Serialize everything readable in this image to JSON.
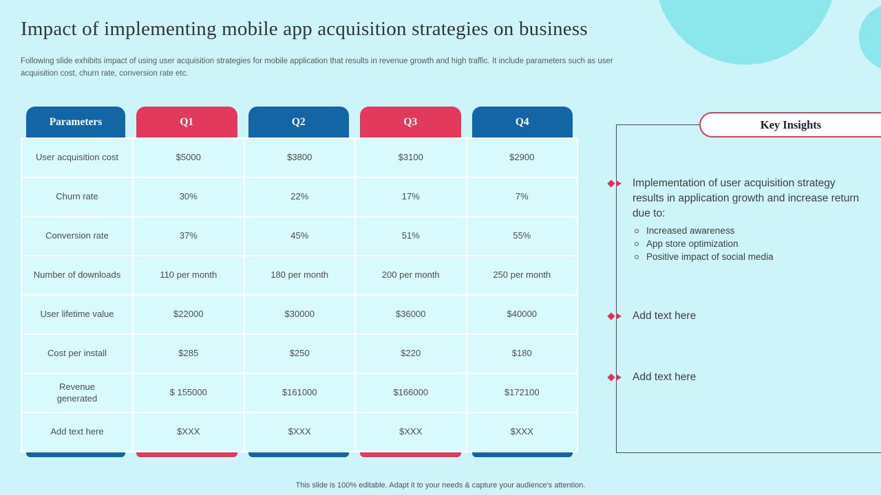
{
  "slide": {
    "title": "Impact of implementing mobile app acquisition strategies on business",
    "subtitle": "Following slide exhibits impact of using user acquisition strategies for mobile application that results in revenue growth and high traffic. It include parameters such as user acquisition cost, churn rate, conversion rate etc.",
    "footer": "This slide is 100% editable. Adapt it to your needs & capture your audience's attention."
  },
  "table": {
    "headers": [
      "Parameters",
      "Q1",
      "Q2",
      "Q3",
      "Q4"
    ],
    "rows": [
      {
        "label": "User acquisition cost",
        "values": [
          "$5000",
          "$3800",
          "$3100",
          "$2900"
        ]
      },
      {
        "label": "Churn rate",
        "values": [
          "30%",
          "22%",
          "17%",
          "7%"
        ]
      },
      {
        "label": "Conversion rate",
        "values": [
          "37%",
          "45%",
          "51%",
          "55%"
        ]
      },
      {
        "label": "Number of downloads",
        "values": [
          "110 per month",
          "180 per month",
          "200 per month",
          "250 per month"
        ]
      },
      {
        "label": "User lifetime value",
        "values": [
          "$22000",
          "$30000",
          "$36000",
          "$40000"
        ]
      },
      {
        "label": "Cost per install",
        "values": [
          "$285",
          "$250",
          "$220",
          "$180"
        ]
      },
      {
        "label": "Revenue generated",
        "values": [
          "$ 155000",
          "$161000",
          "$166000",
          "$172100"
        ]
      },
      {
        "label": "Add text here",
        "values": [
          "$XXX",
          "$XXX",
          "$XXX",
          "$XXX"
        ]
      }
    ]
  },
  "insights": {
    "title": "Key Insights",
    "items": [
      {
        "text": "Implementation of user acquisition strategy results in application growth and increase return due to:",
        "subitems": [
          "Increased awareness",
          "App store optimization",
          "Positive impact of social media"
        ]
      },
      {
        "text": "Add text here",
        "subitems": []
      },
      {
        "text": "Add text here",
        "subitems": []
      }
    ]
  },
  "colors": {
    "accent_blue": "#1465a5",
    "accent_red": "#e23a5c",
    "background": "#cdf5f9",
    "cell_background": "#d9fafd",
    "blob": "#8ce7ec"
  }
}
